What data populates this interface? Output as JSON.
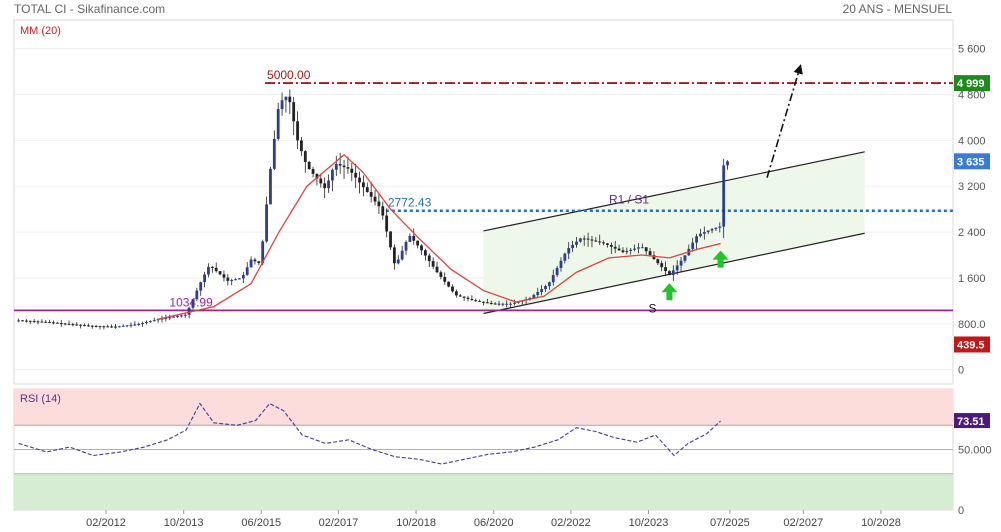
{
  "header": {
    "left": "TOTAL CI - Sikafinance.com",
    "right": "20 ANS - MENSUEL"
  },
  "chart_data": {
    "type": "candlestick",
    "price_panel": {
      "indicator_label": "MM (20)",
      "y_ticks": [
        "5 600",
        "4 800",
        "4 000",
        "3 200",
        "2 400",
        "1 600",
        "800.0",
        "0"
      ],
      "y_tick_values": [
        5600,
        4800,
        4000,
        3200,
        2400,
        1600,
        800,
        0
      ],
      "ylim": [
        -250,
        6100
      ],
      "badges": [
        {
          "text": "4 999",
          "value": 4999,
          "color": "#1e8a1e"
        },
        {
          "text": "3 635",
          "value": 3635,
          "color": "#3a7bd5"
        },
        {
          "text": "439.5",
          "value": 439.5,
          "color": "#c01818"
        }
      ],
      "levels": [
        {
          "label": "5000.00",
          "value": 5000,
          "color": "#a51a1a",
          "style": "dashdot"
        },
        {
          "label": "2772.43",
          "value": 2772.43,
          "color": "#1f73c4",
          "style": "dotted"
        },
        {
          "label": "1034.99",
          "value": 1034.99,
          "color": "#a020a0",
          "style": "solid"
        }
      ],
      "annotations": [
        "R1 / S1",
        "S"
      ],
      "channel": {
        "upper": [
          [
            2020.2,
            2420
          ],
          [
            2028.4,
            3800
          ]
        ],
        "lower": [
          [
            2020.2,
            980
          ],
          [
            2028.4,
            2380
          ]
        ]
      },
      "projection_arrow": [
        [
          2026.3,
          3350
        ],
        [
          2027.0,
          5250
        ]
      ],
      "signal_arrows": [
        [
          2024.2,
          1350
        ],
        [
          2025.3,
          1920
        ]
      ]
    },
    "time_axis": {
      "x_ticks": [
        "02/2012",
        "10/2013",
        "06/2015",
        "02/2017",
        "10/2018",
        "06/2020",
        "02/2022",
        "10/2023",
        "07/2025",
        "02/2027",
        "10/2028"
      ],
      "x_tick_values": [
        2012.08,
        2013.75,
        2015.42,
        2017.08,
        2018.75,
        2020.42,
        2022.08,
        2023.75,
        2025.5,
        2027.08,
        2028.75
      ],
      "xlim": [
        2010.1,
        2030.3
      ]
    },
    "price_path": [
      [
        2010.2,
        860
      ],
      [
        2010.8,
        830
      ],
      [
        2011.2,
        800
      ],
      [
        2011.8,
        760
      ],
      [
        2012.3,
        750
      ],
      [
        2012.8,
        800
      ],
      [
        2013.2,
        880
      ],
      [
        2013.8,
        960
      ],
      [
        2014.1,
        1500
      ],
      [
        2014.3,
        1820
      ],
      [
        2014.7,
        1550
      ],
      [
        2015.0,
        1600
      ],
      [
        2015.2,
        1920
      ],
      [
        2015.4,
        1850
      ],
      [
        2015.6,
        3400
      ],
      [
        2015.8,
        4650
      ],
      [
        2016.0,
        4800
      ],
      [
        2016.2,
        4000
      ],
      [
        2016.4,
        3550
      ],
      [
        2016.8,
        3150
      ],
      [
        2017.0,
        3600
      ],
      [
        2017.3,
        3500
      ],
      [
        2017.7,
        3100
      ],
      [
        2018.0,
        2800
      ],
      [
        2018.3,
        1800
      ],
      [
        2018.6,
        2350
      ],
      [
        2018.9,
        2050
      ],
      [
        2019.2,
        1700
      ],
      [
        2019.6,
        1300
      ],
      [
        2020.0,
        1200
      ],
      [
        2020.4,
        1150
      ],
      [
        2020.8,
        1150
      ],
      [
        2021.2,
        1250
      ],
      [
        2021.6,
        1500
      ],
      [
        2022.0,
        2100
      ],
      [
        2022.3,
        2300
      ],
      [
        2022.8,
        2200
      ],
      [
        2023.2,
        2050
      ],
      [
        2023.6,
        2150
      ],
      [
        2023.9,
        1900
      ],
      [
        2024.2,
        1650
      ],
      [
        2024.5,
        1950
      ],
      [
        2024.8,
        2350
      ],
      [
        2025.1,
        2450
      ],
      [
        2025.3,
        2500
      ],
      [
        2025.35,
        3550
      ],
      [
        2025.45,
        3635
      ]
    ],
    "moving_average_path": [
      [
        2013.2,
        880
      ],
      [
        2014.4,
        1100
      ],
      [
        2015.2,
        1500
      ],
      [
        2015.8,
        2400
      ],
      [
        2016.4,
        3200
      ],
      [
        2017.2,
        3750
      ],
      [
        2017.6,
        3450
      ],
      [
        2018.2,
        2800
      ],
      [
        2018.8,
        2300
      ],
      [
        2019.5,
        1750
      ],
      [
        2020.2,
        1380
      ],
      [
        2020.9,
        1180
      ],
      [
        2021.5,
        1280
      ],
      [
        2022.2,
        1700
      ],
      [
        2022.9,
        1950
      ],
      [
        2023.6,
        2000
      ],
      [
        2024.2,
        1950
      ],
      [
        2024.8,
        2100
      ],
      [
        2025.3,
        2200
      ]
    ],
    "rsi_panel": {
      "label": "RSI (14)",
      "value_badge": "73.51",
      "value": 73.51,
      "badge_color": "#4b1a7a",
      "y_ticks": [
        "50.000",
        "0"
      ],
      "y_tick_values": [
        50,
        0
      ],
      "ylim": [
        0,
        100
      ],
      "overbought": 70,
      "oversold": 30,
      "series_path": [
        [
          2010.2,
          55
        ],
        [
          2010.8,
          48
        ],
        [
          2011.3,
          52
        ],
        [
          2011.8,
          45
        ],
        [
          2012.4,
          48
        ],
        [
          2012.9,
          52
        ],
        [
          2013.4,
          58
        ],
        [
          2013.8,
          66
        ],
        [
          2014.1,
          88
        ],
        [
          2014.4,
          72
        ],
        [
          2014.9,
          70
        ],
        [
          2015.3,
          74
        ],
        [
          2015.6,
          88
        ],
        [
          2015.9,
          82
        ],
        [
          2016.3,
          62
        ],
        [
          2016.8,
          55
        ],
        [
          2017.3,
          58
        ],
        [
          2017.8,
          50
        ],
        [
          2018.3,
          44
        ],
        [
          2018.8,
          42
        ],
        [
          2019.3,
          38
        ],
        [
          2019.8,
          42
        ],
        [
          2020.3,
          46
        ],
        [
          2020.8,
          48
        ],
        [
          2021.3,
          52
        ],
        [
          2021.8,
          58
        ],
        [
          2022.2,
          68
        ],
        [
          2022.6,
          65
        ],
        [
          2023.0,
          60
        ],
        [
          2023.5,
          56
        ],
        [
          2023.9,
          62
        ],
        [
          2024.3,
          45
        ],
        [
          2024.6,
          55
        ],
        [
          2025.0,
          63
        ],
        [
          2025.3,
          73.51
        ]
      ]
    }
  }
}
